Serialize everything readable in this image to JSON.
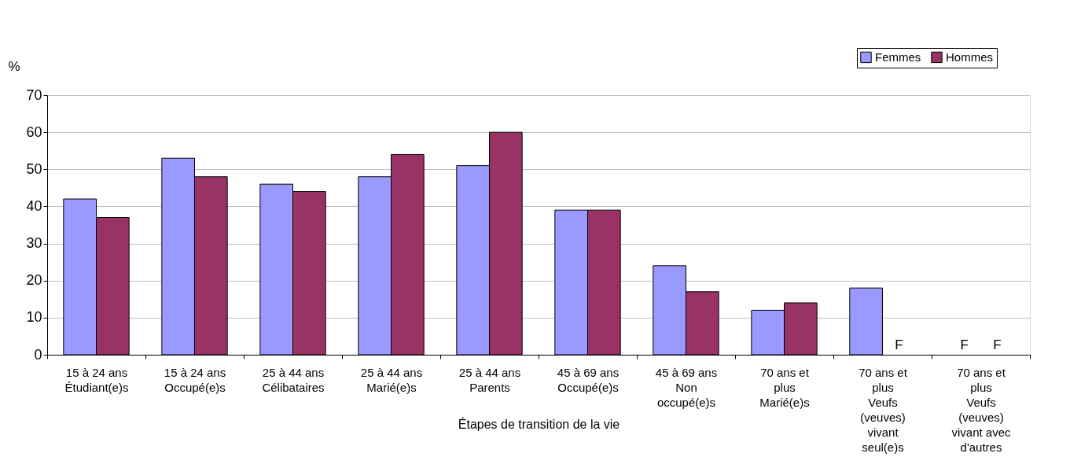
{
  "chart_data": {
    "type": "bar",
    "xlabel": "Étapes de transition de la vie",
    "ylabel": "%",
    "categories": [
      "15 à 24 ans\nÉtudiant(e)s",
      "15 à 24 ans\nOccupé(e)s",
      "25 à 44 ans\nCélibataires",
      "25 à 44 ans\nMarié(e)s",
      "25 à 44 ans\nParents",
      "45 à 69 ans\nOccupé(e)s",
      "45 à 69 ans\nNon\noccupé(e)s",
      "70 ans et\nplus\nMarié(e)s",
      "70 ans et\nplus\nVeufs\n(veuves)\nvivant\nseul(e)s",
      "70 ans et\nplus\nVeufs\n(veuves)\nvivant avec\nd'autres"
    ],
    "series": [
      {
        "name": "Femmes",
        "color": "#9999ff",
        "values": [
          42,
          53,
          46,
          48,
          51,
          39,
          24,
          12,
          18,
          null
        ],
        "value_labels": [
          null,
          null,
          null,
          null,
          null,
          null,
          null,
          null,
          null,
          "F"
        ]
      },
      {
        "name": "Hommes",
        "color": "#993366",
        "values": [
          37,
          48,
          44,
          54,
          60,
          39,
          17,
          14,
          null,
          null
        ],
        "value_labels": [
          null,
          null,
          null,
          null,
          null,
          null,
          null,
          null,
          "F",
          "F"
        ]
      }
    ],
    "ylim": [
      0,
      70
    ],
    "yticks": [
      0,
      10,
      20,
      30,
      40,
      50,
      60,
      70
    ],
    "grid": "y",
    "legend": "top right"
  }
}
